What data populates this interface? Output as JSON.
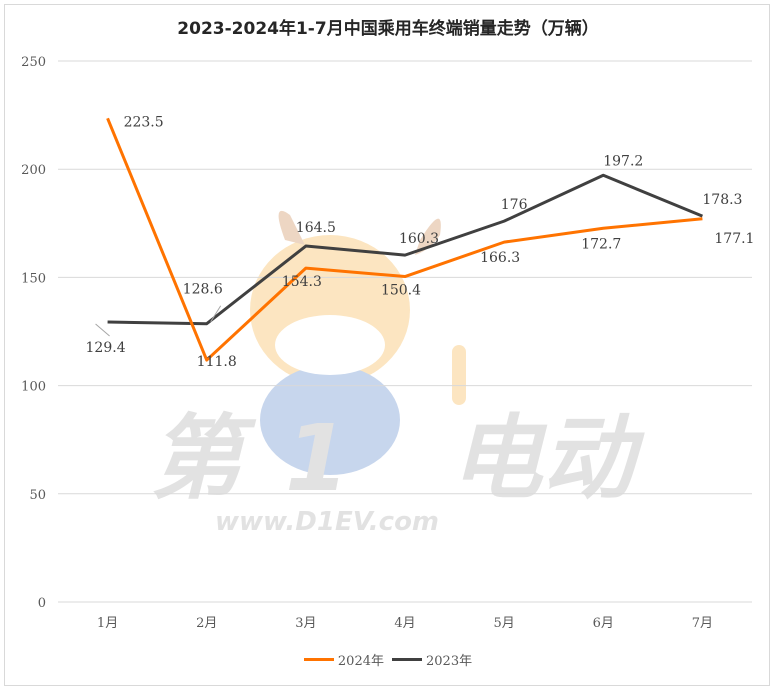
{
  "chart_data": {
    "type": "line",
    "title": "2023-2024年1-7月中国乘用车终端销量走势（万辆）",
    "categories": [
      "1月",
      "2月",
      "3月",
      "4月",
      "5月",
      "6月",
      "7月"
    ],
    "series": [
      {
        "name": "2024年",
        "color": "#ff7300",
        "values": [
          223.5,
          111.8,
          154.3,
          150.4,
          166.3,
          172.7,
          177.1
        ]
      },
      {
        "name": "2023年",
        "color": "#404040",
        "values": [
          129.4,
          128.6,
          164.5,
          160.3,
          176,
          197.2,
          178.3
        ]
      }
    ],
    "ylim": [
      0,
      250
    ],
    "yticks": [
      0,
      50,
      100,
      150,
      200,
      250
    ],
    "grid": true,
    "legend_position": "bottom"
  },
  "watermark": {
    "brand": "第1电动",
    "url": "www.D1EV.com"
  }
}
